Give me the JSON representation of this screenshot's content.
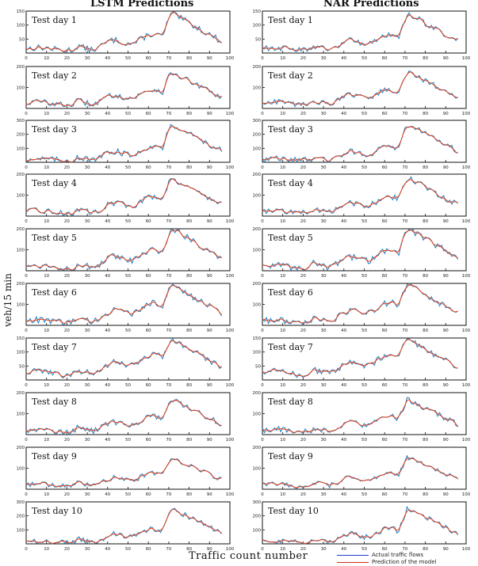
{
  "figure": {
    "left_title": "LSTM Predictions",
    "right_title": "NAR Predictions",
    "ylabel": "veh/15 min",
    "xlabel": "Traffic count number",
    "legend": [
      {
        "label": "Actual traffic flows",
        "color": "#1f3fd0"
      },
      {
        "label": "Prediction of the model",
        "color": "#d02a1a"
      }
    ],
    "colors": {
      "actual": "#1a7fc4",
      "predicted": "#e8401a"
    }
  },
  "chart_data": {
    "type": "line",
    "x": {
      "range": [
        0,
        100
      ],
      "ticks": [
        0,
        10,
        20,
        30,
        40,
        50,
        60,
        70,
        80,
        90,
        100
      ]
    },
    "panels": [
      {
        "model": "LSTM",
        "label": "Test day 1",
        "ylim": [
          0,
          150
        ],
        "yticks": [
          50,
          100,
          150
        ],
        "peak": 140,
        "base": 15,
        "shoulder": 0.45
      },
      {
        "model": "LSTM",
        "label": "Test day 2",
        "ylim": [
          0,
          200
        ],
        "yticks": [
          100,
          200
        ],
        "peak": 170,
        "base": 25,
        "shoulder": 0.5
      },
      {
        "model": "LSTM",
        "label": "Test day 3",
        "ylim": [
          0,
          300
        ],
        "yticks": [
          100,
          200,
          300
        ],
        "peak": 270,
        "base": 20,
        "shoulder": 0.4
      },
      {
        "model": "LSTM",
        "label": "Test day 4",
        "ylim": [
          0,
          200
        ],
        "yticks": [
          100,
          200
        ],
        "peak": 180,
        "base": 20,
        "shoulder": 0.5
      },
      {
        "model": "LSTM",
        "label": "Test day 5",
        "ylim": [
          0,
          200
        ],
        "yticks": [
          100,
          200
        ],
        "peak": 200,
        "base": 20,
        "shoulder": 0.45
      },
      {
        "model": "LSTM",
        "label": "Test day 6",
        "ylim": [
          0,
          200
        ],
        "yticks": [
          100,
          200
        ],
        "peak": 190,
        "base": 20,
        "shoulder": 0.55
      },
      {
        "model": "LSTM",
        "label": "Test day 7",
        "ylim": [
          0,
          150
        ],
        "yticks": [
          50,
          100,
          150
        ],
        "peak": 145,
        "base": 25,
        "shoulder": 0.6
      },
      {
        "model": "LSTM",
        "label": "Test day 8",
        "ylim": [
          0,
          200
        ],
        "yticks": [
          100,
          200
        ],
        "peak": 165,
        "base": 20,
        "shoulder": 0.5
      },
      {
        "model": "LSTM",
        "label": "Test day 9",
        "ylim": [
          0,
          200
        ],
        "yticks": [
          100,
          200
        ],
        "peak": 150,
        "base": 20,
        "shoulder": 0.5
      },
      {
        "model": "LSTM",
        "label": "Test day 10",
        "ylim": [
          0,
          300
        ],
        "yticks": [
          100,
          200,
          300
        ],
        "peak": 250,
        "base": 15,
        "shoulder": 0.4
      },
      {
        "model": "NAR",
        "label": "Test day 1",
        "ylim": [
          0,
          150
        ],
        "yticks": [
          50,
          100,
          150
        ],
        "peak": 140,
        "base": 15,
        "shoulder": 0.45
      },
      {
        "model": "NAR",
        "label": "Test day 2",
        "ylim": [
          0,
          200
        ],
        "yticks": [
          100,
          200
        ],
        "peak": 170,
        "base": 25,
        "shoulder": 0.5
      },
      {
        "model": "NAR",
        "label": "Test day 3",
        "ylim": [
          0,
          300
        ],
        "yticks": [
          100,
          200,
          300
        ],
        "peak": 270,
        "base": 20,
        "shoulder": 0.4
      },
      {
        "model": "NAR",
        "label": "Test day 4",
        "ylim": [
          0,
          200
        ],
        "yticks": [
          100,
          200
        ],
        "peak": 180,
        "base": 20,
        "shoulder": 0.5
      },
      {
        "model": "NAR",
        "label": "Test day 5",
        "ylim": [
          0,
          200
        ],
        "yticks": [
          100,
          200
        ],
        "peak": 200,
        "base": 20,
        "shoulder": 0.45
      },
      {
        "model": "NAR",
        "label": "Test day 6",
        "ylim": [
          0,
          200
        ],
        "yticks": [
          100,
          200
        ],
        "peak": 190,
        "base": 20,
        "shoulder": 0.55
      },
      {
        "model": "NAR",
        "label": "Test day 7",
        "ylim": [
          0,
          150
        ],
        "yticks": [
          50,
          100,
          150
        ],
        "peak": 145,
        "base": 25,
        "shoulder": 0.6
      },
      {
        "model": "NAR",
        "label": "Test day 8",
        "ylim": [
          0,
          200
        ],
        "yticks": [
          100,
          200
        ],
        "peak": 165,
        "base": 20,
        "shoulder": 0.5
      },
      {
        "model": "NAR",
        "label": "Test day 9",
        "ylim": [
          0,
          200
        ],
        "yticks": [
          100,
          200
        ],
        "peak": 150,
        "base": 20,
        "shoulder": 0.5
      },
      {
        "model": "NAR",
        "label": "Test day 10",
        "ylim": [
          0,
          300
        ],
        "yticks": [
          100,
          200,
          300
        ],
        "peak": 250,
        "base": 15,
        "shoulder": 0.4
      }
    ]
  }
}
